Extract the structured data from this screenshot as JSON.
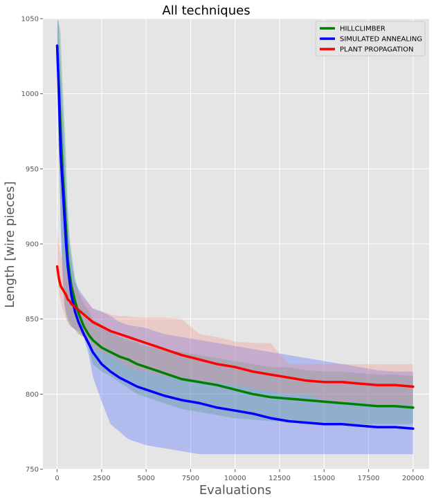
{
  "chart_data": {
    "type": "line",
    "title": "All techniques",
    "xlabel": "Evaluations",
    "ylabel": "Length [wire pieces]",
    "xlim": [
      -800,
      20900
    ],
    "ylim": [
      750,
      1050
    ],
    "x_ticks": [
      0,
      2500,
      5000,
      7500,
      10000,
      12500,
      15000,
      17500,
      20000
    ],
    "x_tick_labels": [
      "0",
      "2500",
      "5000",
      "7500",
      "10000",
      "12500",
      "15000",
      "17500",
      "20000"
    ],
    "y_ticks": [
      750,
      800,
      850,
      900,
      950,
      1000,
      1050
    ],
    "y_tick_labels": [
      "750",
      "800",
      "850",
      "900",
      "950",
      "1000",
      "1050"
    ],
    "grid": true,
    "legend_position": "top-right",
    "background": "#e5e5e5",
    "series": [
      {
        "name": "HILLCLIMBER",
        "color": "#008000",
        "band_color": "#4caf50",
        "x": [
          0,
          100,
          200,
          300,
          400,
          500,
          600,
          700,
          800,
          1000,
          1200,
          1500,
          1800,
          2000,
          2500,
          3000,
          3500,
          4000,
          4500,
          5000,
          6000,
          7000,
          8000,
          9000,
          10000,
          11000,
          12000,
          13000,
          14000,
          15000,
          16000,
          17000,
          18000,
          19000,
          20000
        ],
        "mean": [
          1032,
          1005,
          975,
          950,
          930,
          910,
          890,
          880,
          872,
          862,
          854,
          845,
          839,
          836,
          831,
          828,
          825,
          823,
          820,
          818,
          814,
          810,
          808,
          806,
          803,
          800,
          798,
          797,
          796,
          795,
          794,
          793,
          792,
          792,
          791
        ],
        "upper": [
          1050,
          1048,
          1040,
          1010,
          985,
          960,
          925,
          905,
          895,
          878,
          868,
          860,
          855,
          850,
          846,
          842,
          838,
          836,
          834,
          832,
          830,
          828,
          826,
          824,
          822,
          820,
          818,
          818,
          816,
          815,
          815,
          814,
          813,
          813,
          812
        ],
        "lower": [
          1005,
          960,
          920,
          885,
          860,
          852,
          848,
          846,
          845,
          843,
          840,
          838,
          830,
          820,
          815,
          812,
          808,
          804,
          800,
          798,
          794,
          790,
          788,
          786,
          784,
          783,
          782,
          782,
          781,
          781,
          780,
          780,
          780,
          780,
          780
        ]
      },
      {
        "name": "SIMULATED ANNEALING",
        "color": "#0000ff",
        "band_color": "#3d5afe",
        "x": [
          0,
          100,
          200,
          300,
          400,
          500,
          600,
          700,
          800,
          1000,
          1200,
          1500,
          1800,
          2000,
          2500,
          3000,
          3500,
          4000,
          4500,
          5000,
          6000,
          7000,
          8000,
          9000,
          10000,
          11000,
          12000,
          13000,
          14000,
          15000,
          16000,
          17000,
          18000,
          19000,
          20000
        ],
        "mean": [
          1032,
          1000,
          960,
          940,
          920,
          900,
          885,
          875,
          866,
          855,
          848,
          840,
          833,
          828,
          820,
          815,
          811,
          808,
          805,
          803,
          799,
          796,
          794,
          791,
          789,
          787,
          784,
          782,
          781,
          780,
          780,
          779,
          778,
          778,
          777
        ],
        "upper": [
          1050,
          1045,
          1020,
          995,
          970,
          940,
          915,
          900,
          890,
          875,
          870,
          865,
          860,
          857,
          855,
          852,
          848,
          846,
          845,
          844,
          840,
          838,
          836,
          834,
          832,
          830,
          828,
          826,
          824,
          822,
          820,
          818,
          816,
          815,
          815
        ],
        "lower": [
          1015,
          960,
          910,
          880,
          860,
          855,
          850,
          848,
          845,
          843,
          842,
          838,
          825,
          812,
          795,
          780,
          775,
          770,
          768,
          766,
          764,
          762,
          760,
          760,
          760,
          760,
          760,
          760,
          760,
          760,
          760,
          760,
          760,
          760,
          760
        ]
      },
      {
        "name": "PLANT PROPAGATION",
        "color": "#ff0000",
        "band_color": "#f28b82",
        "x": [
          0,
          100,
          200,
          300,
          400,
          500,
          600,
          700,
          800,
          1000,
          1200,
          1500,
          1800,
          2000,
          2500,
          3000,
          3500,
          4000,
          4500,
          5000,
          6000,
          7000,
          8000,
          9000,
          10000,
          11000,
          12000,
          13000,
          14000,
          15000,
          16000,
          17000,
          18000,
          19000,
          20000
        ],
        "mean": [
          885,
          877,
          872,
          870,
          868,
          866,
          863,
          862,
          860,
          858,
          856,
          853,
          850,
          848,
          845,
          842,
          840,
          838,
          836,
          834,
          830,
          826,
          823,
          820,
          818,
          815,
          813,
          811,
          809,
          808,
          808,
          807,
          806,
          806,
          805
        ],
        "upper": [
          910,
          900,
          893,
          890,
          886,
          883,
          880,
          878,
          875,
          872,
          868,
          864,
          860,
          857,
          855,
          853,
          852,
          852,
          851,
          851,
          851,
          850,
          840,
          838,
          835,
          834,
          834,
          820,
          820,
          820,
          820,
          820,
          820,
          820,
          820
        ],
        "lower": [
          880,
          868,
          862,
          857,
          854,
          850,
          848,
          846,
          845,
          843,
          840,
          838,
          835,
          832,
          828,
          826,
          822,
          818,
          816,
          815,
          812,
          810,
          808,
          808,
          806,
          804,
          802,
          800,
          800,
          796,
          795,
          795,
          793,
          793,
          793
        ]
      }
    ]
  }
}
